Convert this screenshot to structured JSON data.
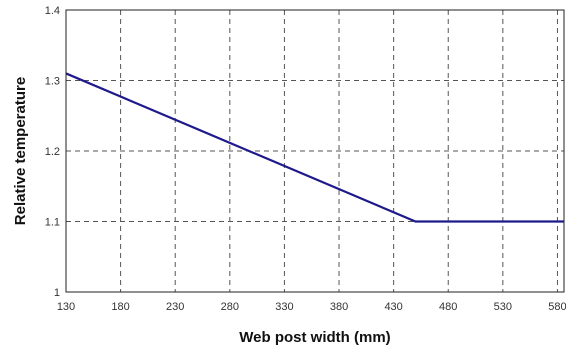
{
  "chart_data": {
    "type": "line",
    "title": "",
    "xlabel": "Web post width (mm)",
    "ylabel": "Relative temperature",
    "xlim": [
      130,
      586
    ],
    "ylim": [
      1.0,
      1.4
    ],
    "x_ticks": [
      130,
      180,
      230,
      280,
      330,
      380,
      430,
      480,
      530,
      580
    ],
    "x_tick_labels": [
      "130",
      "180",
      "230",
      "280",
      "330",
      "380",
      "430",
      "480",
      "530",
      "580"
    ],
    "y_ticks": [
      1.0,
      1.1,
      1.2,
      1.3,
      1.4
    ],
    "y_tick_labels": [
      "1",
      "1.1",
      "1.2",
      "1.3",
      "1.4"
    ],
    "grid": true,
    "series": [
      {
        "x": [
          130,
          450,
          586
        ],
        "y": [
          1.31,
          1.1,
          1.1
        ],
        "color": "#1f1a8c"
      }
    ]
  }
}
